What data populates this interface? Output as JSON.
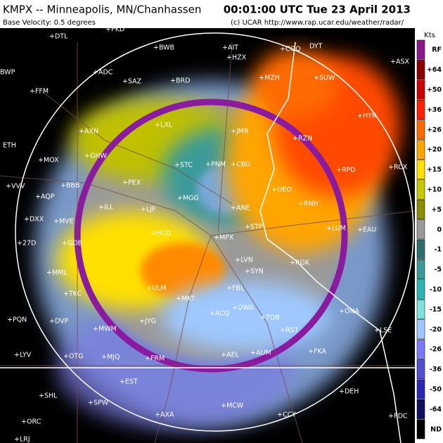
{
  "header": {
    "title": "KMPX -- Minneapolis, MN/Chanhassen",
    "subtitle": "Base Velocity: 0.5 degrees",
    "time": "00:01:00 UTC Tue 23 April 2013",
    "credit": "(c) UCAR  http://www.rap.ucar.edu/weather/radar/"
  },
  "legend": {
    "unit": "Kts",
    "items": [
      {
        "label": "RF",
        "color": "#8a1a8a"
      },
      {
        "label": "+64",
        "color": "#8b0000"
      },
      {
        "label": "+50",
        "color": "#cc0000"
      },
      {
        "label": "+36",
        "color": "#ff2200"
      },
      {
        "label": "+26",
        "color": "#ff6a00"
      },
      {
        "label": "+20",
        "color": "#ffa500"
      },
      {
        "label": "+15",
        "color": "#ffe000"
      },
      {
        "label": "+10",
        "color": "#c8c800"
      },
      {
        "label": "+5",
        "color": "#8c8c00"
      },
      {
        "label": "0",
        "color": "#9a9a9a"
      },
      {
        "label": "-1",
        "color": "#2e6e6e"
      },
      {
        "label": "-5",
        "color": "#3a9a9a"
      },
      {
        "label": "-10",
        "color": "#2ab4b4"
      },
      {
        "label": "-15",
        "color": "#7fe0e0"
      },
      {
        "label": "-20",
        "color": "#9ec8ff"
      },
      {
        "label": "-26",
        "color": "#7a7aff"
      },
      {
        "label": "-36",
        "color": "#5050d0"
      },
      {
        "label": "-50",
        "color": "#2828b0"
      },
      {
        "label": "-64",
        "color": "#101060"
      },
      {
        "label": "ND",
        "color": "#000000"
      }
    ]
  },
  "stations": [
    "+PKD",
    "+DTL",
    "BWP",
    "+FFM",
    "+ADC",
    "+BWB",
    "+AIT",
    "+HZX",
    "+COQ",
    "DYT",
    "+ASX",
    "+SAZ",
    "+BRD",
    "+MZH",
    "+SUW",
    "+AXN",
    "+LXL",
    "+JMR",
    "+RZN",
    "+HYR",
    "ETH",
    "+MOX",
    "+GHW",
    "+STC",
    "+PNM",
    "+CBG",
    "+RPD",
    "+RCX",
    "+VVV",
    "+AQP",
    "+BBB",
    "+PEX",
    "+MGG",
    "+ANE",
    "+OEO",
    "+RNH",
    "+DXX",
    "+MVE",
    "+ILL",
    "+LJF",
    "+MPX",
    "+STP",
    "+LUM",
    "+EAU",
    "+27D",
    "+GDB",
    "+HCD",
    "+MML",
    "+TKC",
    "+ULM",
    "+MKT",
    "+FBL",
    "+LVN",
    "+SYN",
    "+RGK",
    "+ACQ",
    "+OWA",
    "+ONA",
    "+LSE",
    "+PQN",
    "+DVP",
    "+JYG",
    "+TOB",
    "+MWM",
    "+RST",
    "+FKA",
    "+AUM",
    "+AEL",
    "+FRM",
    "+MJQ",
    "+LYV",
    "+OTG",
    "+EST",
    "+DEH",
    "+SHL",
    "+SPW",
    "+AXA",
    "+MCW",
    "+CCY",
    "+ORC",
    "+PDC",
    "+LRJ"
  ]
}
